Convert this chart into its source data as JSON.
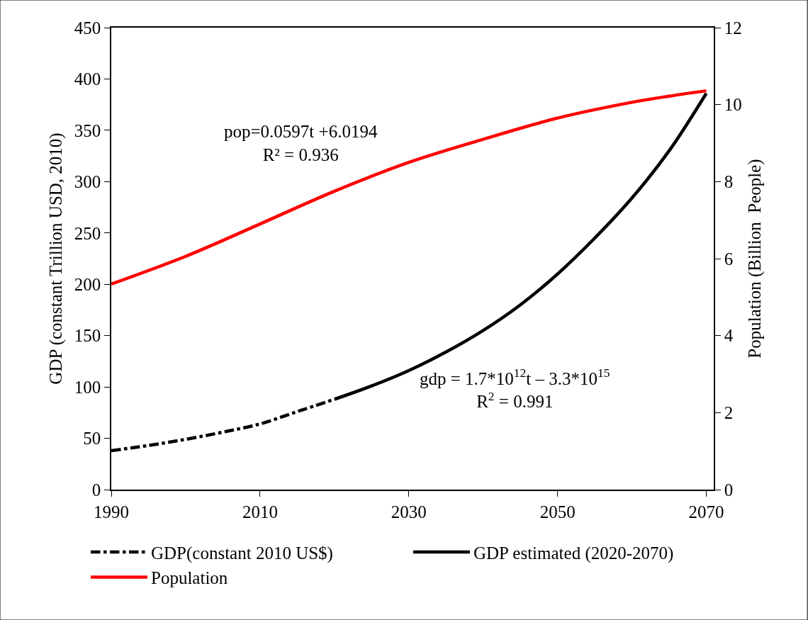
{
  "chart_data": {
    "type": "line",
    "xlabel": null,
    "ylabel": "GDP (constant Trillion USD, 2010)",
    "y2label": "Population (Billion  People)",
    "series": [
      {
        "name": "GDP(constant 2010 US$)",
        "color": "#000000",
        "line_style": "dashdot",
        "x": [
          1990,
          1995,
          2000,
          2005,
          2010,
          2015,
          2020
        ],
        "values": [
          38,
          43,
          49,
          56,
          64,
          76,
          88
        ]
      },
      {
        "name": "GDP estimated (2020-2070)",
        "color": "#000000",
        "line_style": "solid",
        "x": [
          2020,
          2025,
          2030,
          2035,
          2040,
          2045,
          2050,
          2055,
          2060,
          2065,
          2070
        ],
        "values": [
          88,
          101,
          116,
          134,
          155,
          180,
          210,
          245,
          284,
          330,
          386
        ]
      },
      {
        "name": "Population",
        "color": "#ff0000",
        "line_style": "solid",
        "axis": "y2",
        "x": [
          1990,
          2000,
          2010,
          2020,
          2030,
          2040,
          2050,
          2060,
          2065,
          2070
        ],
        "values": [
          5.34,
          6.06,
          6.9,
          7.75,
          8.5,
          9.1,
          9.65,
          10.06,
          10.22,
          10.36
        ]
      }
    ],
    "xlim": [
      1990,
      2071
    ],
    "xticks": [
      1990,
      2010,
      2030,
      2050,
      2070
    ],
    "ylim": [
      0,
      450
    ],
    "yticks": [
      0,
      50,
      100,
      150,
      200,
      250,
      300,
      350,
      400,
      450
    ],
    "y2lim": [
      0,
      12
    ],
    "y2ticks": [
      0,
      2,
      4,
      6,
      8,
      10,
      12
    ],
    "annotations": [
      "pop=0.0597t +6.0194\nR² = 0.936",
      "gdp = 1.7*10$^{12}$t – 3.3*10$^{15}$\nR$^{2}$ = 0.991"
    ],
    "legend": "bottom",
    "marker": "none"
  }
}
